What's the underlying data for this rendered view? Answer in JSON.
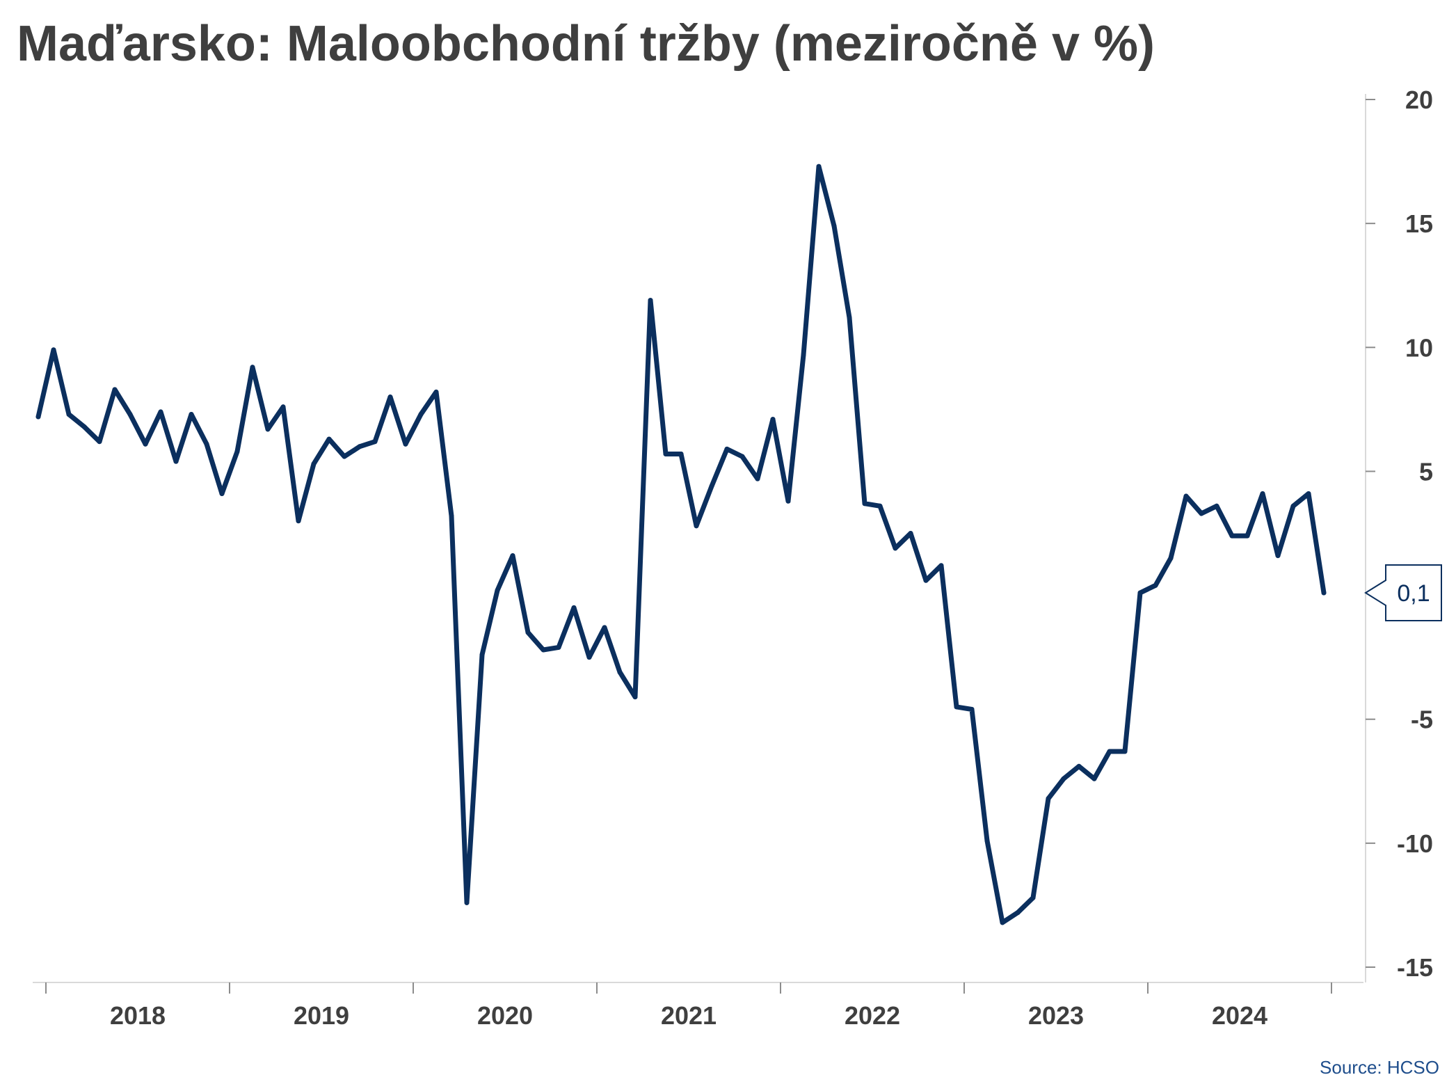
{
  "chart_data": {
    "type": "line",
    "title": "Maďarsko: Maloobchodní tržby (meziročně v %)",
    "xlabel": "",
    "ylabel": "",
    "x_tick_labels": [
      "2018",
      "2019",
      "2020",
      "2021",
      "2022",
      "2023",
      "2024"
    ],
    "y_ticks": [
      20,
      15,
      10,
      5,
      -5,
      -10,
      -15
    ],
    "y_tick_labels": [
      "20",
      "15",
      "10",
      "5",
      "-5",
      "-10",
      "-15"
    ],
    "ylim": [
      -15.8,
      20.5
    ],
    "x_start": "2017-12",
    "grid": false,
    "color": "#0b2f5e",
    "series": [
      {
        "values": [
          7.2,
          9.9,
          7.3,
          6.8,
          6.2,
          8.3,
          7.3,
          6.1,
          7.4,
          5.4,
          7.3,
          6.1,
          4.1,
          5.8,
          9.2,
          6.7,
          7.6,
          3.0,
          5.3,
          6.3,
          5.6,
          6.0,
          6.2,
          8.0,
          6.1,
          7.3,
          8.2,
          3.2,
          -12.4,
          -2.4,
          0.2,
          1.6,
          -1.5,
          -2.2,
          -2.1,
          -0.5,
          -2.5,
          -1.3,
          -3.1,
          -4.1,
          11.9,
          5.7,
          5.7,
          2.8,
          4.4,
          5.9,
          5.6,
          4.7,
          7.1,
          3.8,
          9.7,
          17.3,
          14.9,
          11.2,
          3.7,
          3.6,
          1.9,
          2.5,
          0.6,
          1.2,
          -4.5,
          -4.6,
          -9.9,
          -13.2,
          -12.8,
          -12.2,
          -8.2,
          -7.4,
          -6.9,
          -7.4,
          -6.3,
          -6.3,
          0.1,
          0.4,
          1.5,
          4.0,
          3.3,
          3.6,
          2.4,
          2.4,
          4.1,
          1.6,
          3.6,
          4.1,
          0.1
        ]
      }
    ],
    "last_value_label": "0,1"
  },
  "source": "Source: HCSO"
}
